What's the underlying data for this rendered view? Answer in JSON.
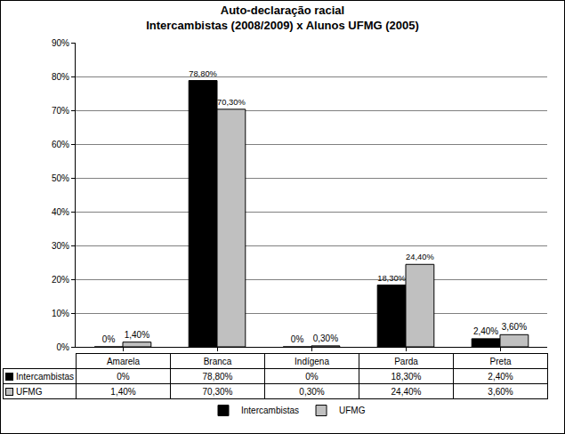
{
  "chart_data": {
    "type": "bar",
    "title": "Auto-declaração racial\nIntercambistas (2008/2009) x Alunos UFMG (2005)",
    "categories": [
      "Amarela",
      "Branca",
      "Indígena",
      "Parda",
      "Preta"
    ],
    "series": [
      {
        "name": "Intercambistas",
        "color": "#000000",
        "values": [
          0,
          78.8,
          0,
          18.3,
          2.4
        ],
        "value_labels": [
          "0%",
          "78,80%",
          "0%",
          "18,30%",
          "2,40%"
        ]
      },
      {
        "name": "UFMG",
        "color": "#c0c0c0",
        "values": [
          1.4,
          70.3,
          0.3,
          24.4,
          3.6
        ],
        "value_labels": [
          "1,40%",
          "70,30%",
          "0,30%",
          "24,40%",
          "3,60%"
        ]
      }
    ],
    "ylim": [
      0,
      90
    ],
    "yticks": [
      {
        "value": 0,
        "label": "0%"
      },
      {
        "value": 10,
        "label": "10%"
      },
      {
        "value": 20,
        "label": "20%"
      },
      {
        "value": 30,
        "label": "30%"
      },
      {
        "value": 40,
        "label": "40%"
      },
      {
        "value": 50,
        "label": "50%"
      },
      {
        "value": 60,
        "label": "60%"
      },
      {
        "value": 70,
        "label": "70%"
      },
      {
        "value": 80,
        "label": "80%"
      },
      {
        "value": 90,
        "label": "90%"
      }
    ],
    "grid": true,
    "data_labels": true,
    "legend": "bottom"
  }
}
